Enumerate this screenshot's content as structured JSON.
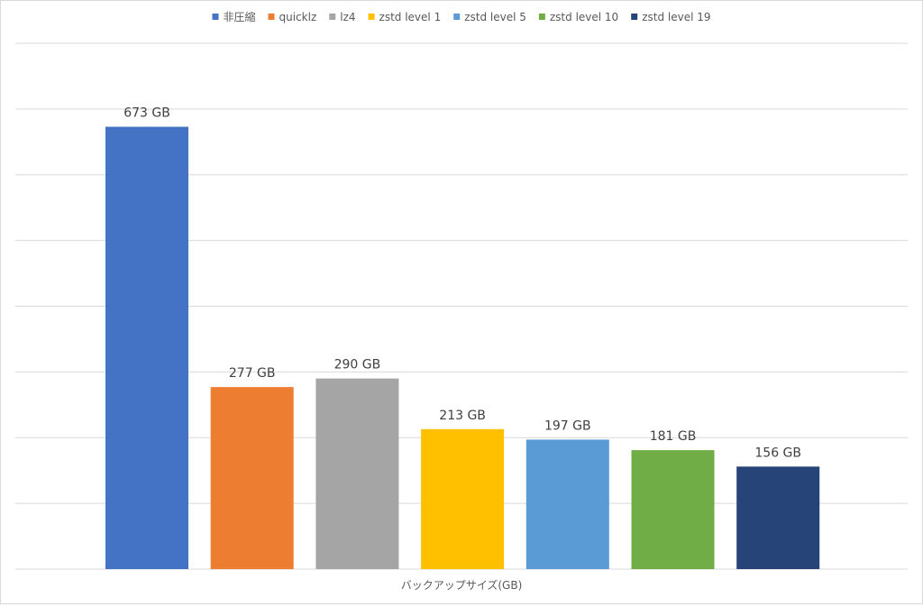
{
  "chart_data": {
    "type": "bar",
    "title": "",
    "xlabel": "バックアップサイズ(GB)",
    "ylabel": "",
    "ylim": [
      0,
      800
    ],
    "grid": true,
    "legend_position": "top",
    "categories": [
      "非圧縮",
      "quicklz",
      "lz4",
      "zstd level 1",
      "zstd level 5",
      "zstd level 10",
      "zstd level 19"
    ],
    "series": [
      {
        "name": "非圧縮",
        "value": 673,
        "label": "673 GB",
        "color": "#4472C4"
      },
      {
        "name": "quicklz",
        "value": 277,
        "label": "277 GB",
        "color": "#ED7D31"
      },
      {
        "name": "lz4",
        "value": 290,
        "label": "290 GB",
        "color": "#A5A5A5"
      },
      {
        "name": "zstd level 1",
        "value": 213,
        "label": "213 GB",
        "color": "#FFC000"
      },
      {
        "name": "zstd level 5",
        "value": 197,
        "label": "197 GB",
        "color": "#5B9BD5"
      },
      {
        "name": "zstd level 10",
        "value": 181,
        "label": "181 GB",
        "color": "#70AD47"
      },
      {
        "name": "zstd level 19",
        "value": 156,
        "label": "156 GB",
        "color": "#264478"
      }
    ]
  }
}
